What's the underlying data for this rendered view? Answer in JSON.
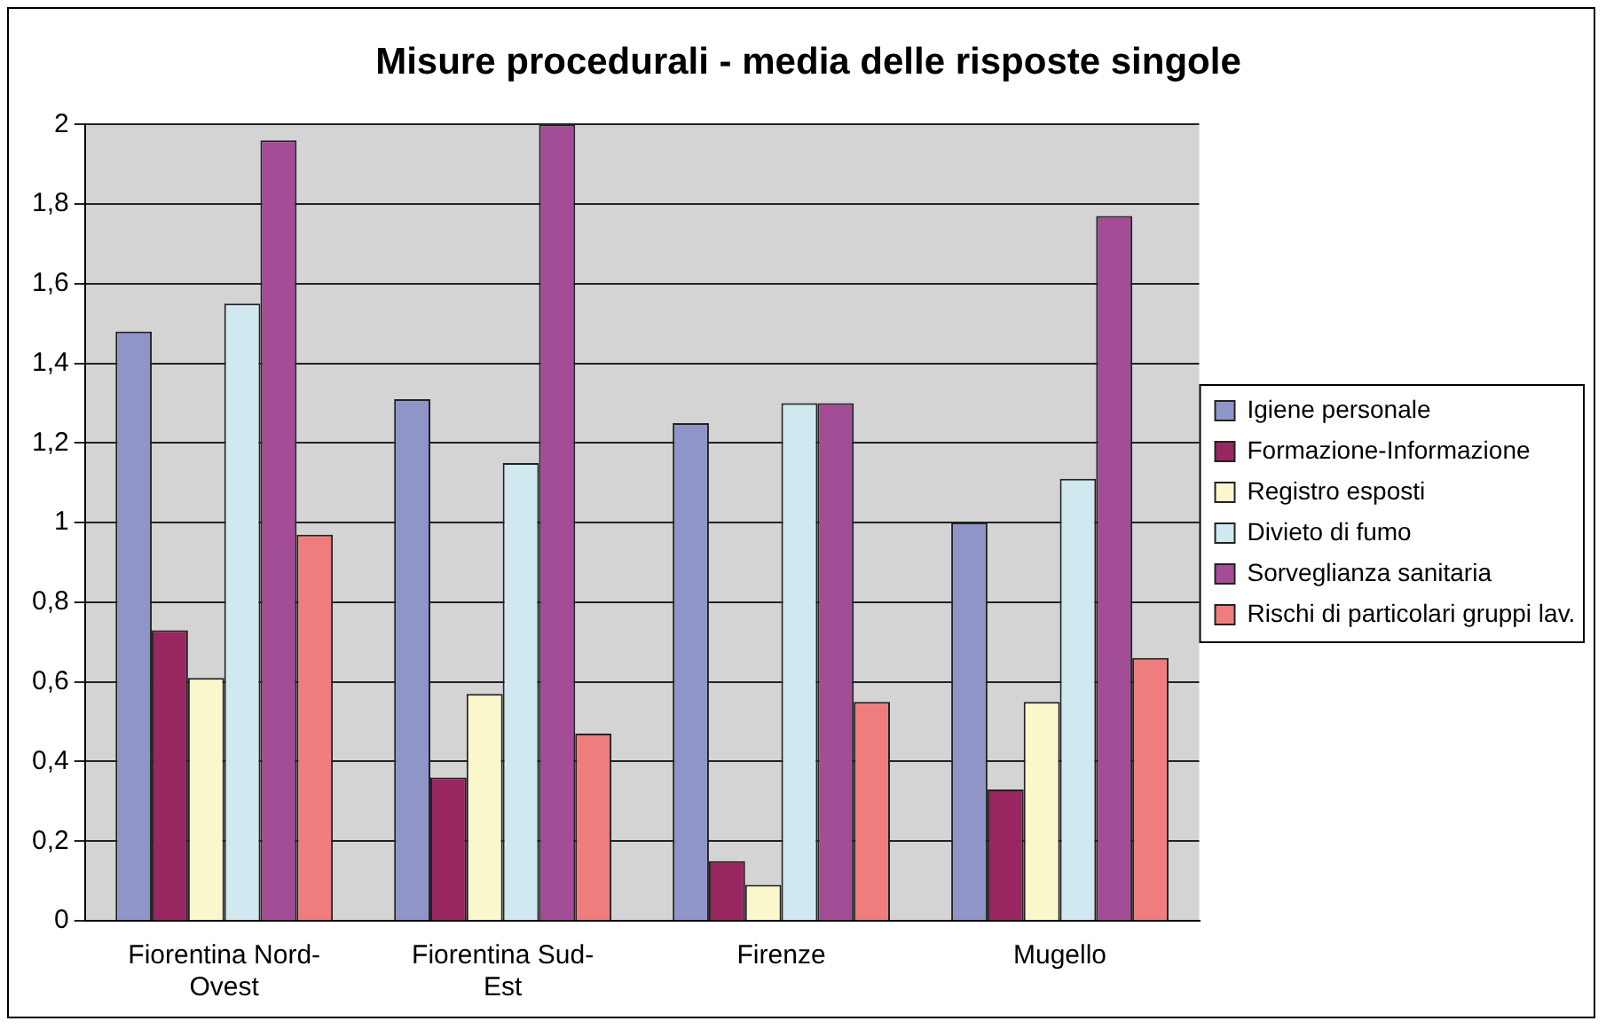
{
  "chart_data": {
    "type": "bar",
    "title": "Misure procedurali - media delle risposte singole",
    "categories": [
      "Fiorentina Nord-Ovest",
      "Fiorentina Sud-Est",
      "Firenze",
      "Mugello"
    ],
    "series": [
      {
        "name": "Igiene personale",
        "color": "#9095c8",
        "values": [
          1.48,
          1.31,
          1.25,
          1.0
        ]
      },
      {
        "name": "Formazione-Informazione",
        "color": "#982660",
        "values": [
          0.73,
          0.36,
          0.15,
          0.33
        ]
      },
      {
        "name": "Registro esposti",
        "color": "#faf7cc",
        "values": [
          0.61,
          0.57,
          0.09,
          0.55
        ]
      },
      {
        "name": "Divieto di fumo",
        "color": "#d0e8f0",
        "values": [
          1.55,
          1.15,
          1.3,
          1.11
        ]
      },
      {
        "name": "Sorveglianza sanitaria",
        "color": "#a34d96",
        "values": [
          1.96,
          2.0,
          1.3,
          1.77
        ]
      },
      {
        "name": "Rischi di particolari gruppi lav.",
        "color": "#ef7d7d",
        "values": [
          0.97,
          0.47,
          0.55,
          0.66
        ]
      }
    ],
    "ylim": [
      0,
      2
    ],
    "yticks": [
      {
        "value": 0,
        "label": "0"
      },
      {
        "value": 0.2,
        "label": "0,2"
      },
      {
        "value": 0.4,
        "label": "0,4"
      },
      {
        "value": 0.6,
        "label": "0,6"
      },
      {
        "value": 0.8,
        "label": "0,8"
      },
      {
        "value": 1,
        "label": "1"
      },
      {
        "value": 1.2,
        "label": "1,2"
      },
      {
        "value": 1.4,
        "label": "1,4"
      },
      {
        "value": 1.6,
        "label": "1,6"
      },
      {
        "value": 1.8,
        "label": "1,8"
      },
      {
        "value": 2,
        "label": "2"
      }
    ],
    "grid": "y",
    "legend": "right"
  }
}
